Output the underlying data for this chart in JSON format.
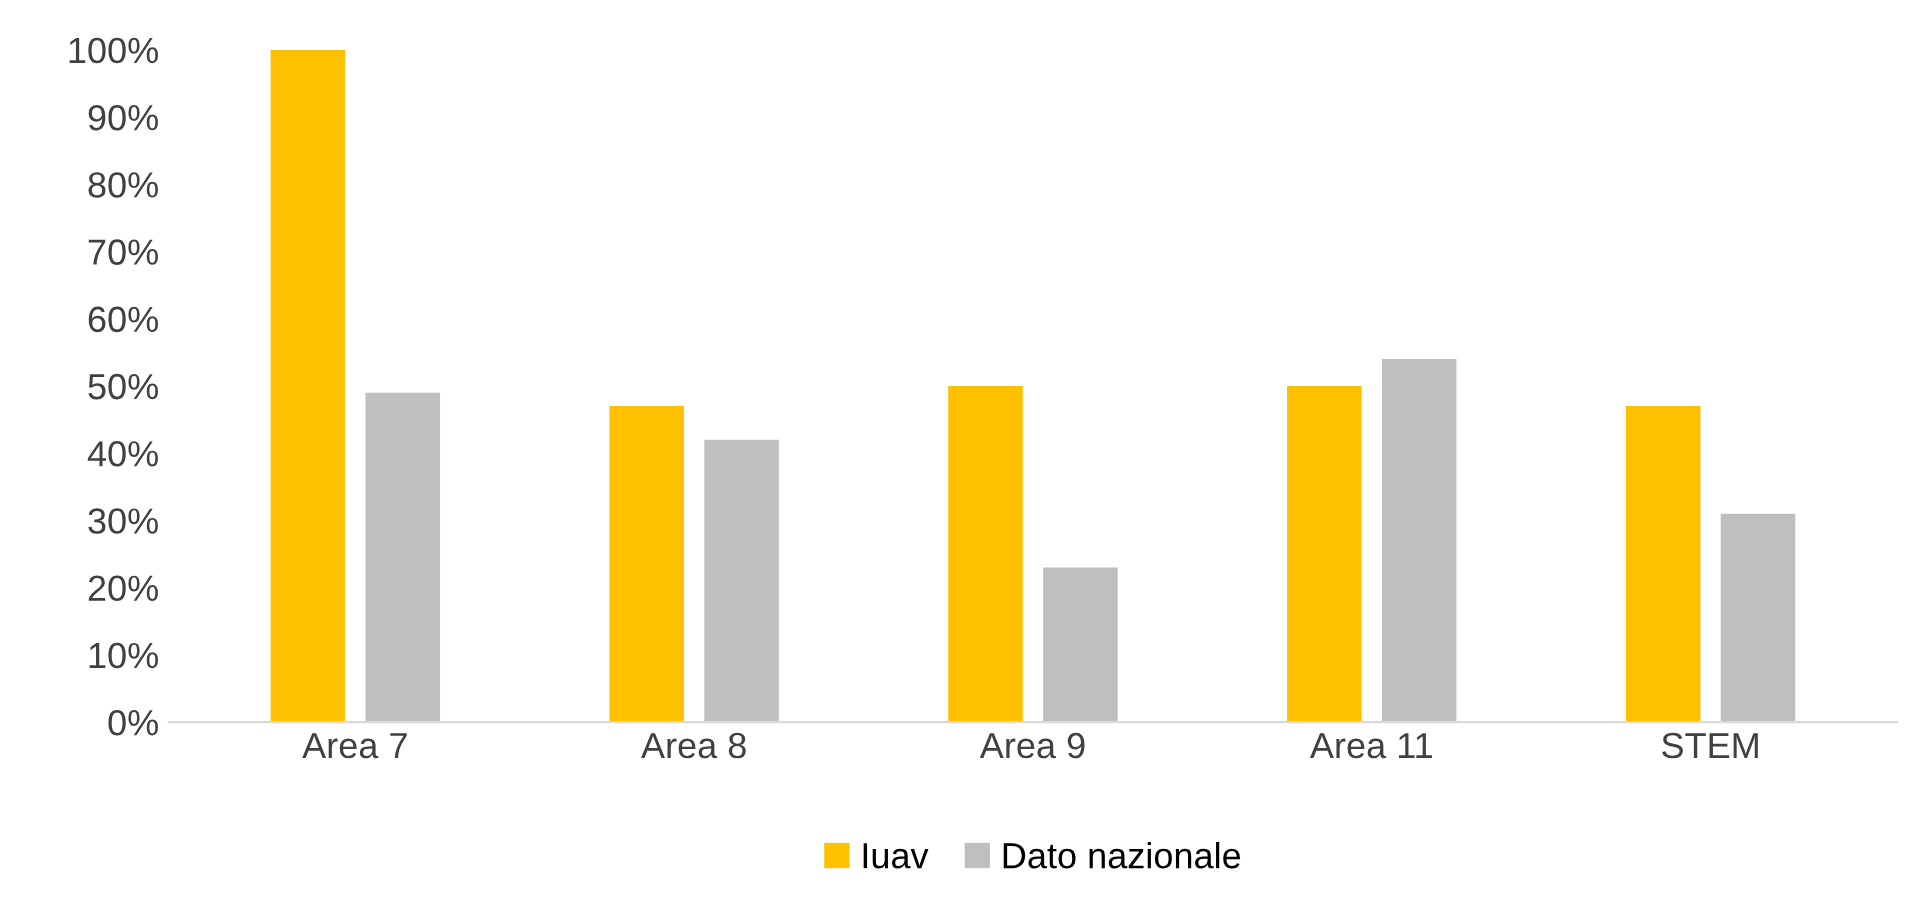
{
  "chart_data": {
    "type": "bar",
    "categories": [
      "Area 7",
      "Area 8",
      "Area 9",
      "Area 11",
      "STEM"
    ],
    "series": [
      {
        "name": "Iuav",
        "color": "#ffc000",
        "values": [
          100,
          47,
          50,
          50,
          47
        ]
      },
      {
        "name": "Dato nazionale",
        "color": "#bfbfbf",
        "values": [
          49,
          42,
          23,
          54,
          31
        ]
      }
    ],
    "ylim": [
      0,
      100
    ],
    "yticks": [
      {
        "value": 0,
        "label": "0%"
      },
      {
        "value": 10,
        "label": "10%"
      },
      {
        "value": 20,
        "label": "20%"
      },
      {
        "value": 30,
        "label": "30%"
      },
      {
        "value": 40,
        "label": "40%"
      },
      {
        "value": 50,
        "label": "50%"
      },
      {
        "value": 60,
        "label": "60%"
      },
      {
        "value": 70,
        "label": "70%"
      },
      {
        "value": 80,
        "label": "80%"
      },
      {
        "value": 90,
        "label": "90%"
      },
      {
        "value": 100,
        "label": "100%"
      }
    ],
    "grid": false,
    "legend": "bottom"
  }
}
